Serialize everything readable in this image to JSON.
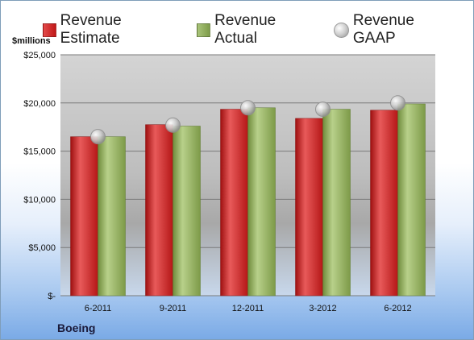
{
  "unit_label": "$millions",
  "company": "Boeing",
  "legend": {
    "estimate": "Revenue Estimate",
    "actual": "Revenue Actual",
    "gaap": "Revenue GAAP"
  },
  "colors": {
    "estimate": "#d42a2a",
    "actual": "#93b15e",
    "gaap": "#c0c0c0",
    "plot_area": "#c8c8c8"
  },
  "chart_data": {
    "type": "bar",
    "categories": [
      "6-2011",
      "9-2011",
      "12-2011",
      "3-2012",
      "6-2012"
    ],
    "series": [
      {
        "name": "Revenue Estimate",
        "values": [
          16500,
          17750,
          19350,
          18400,
          19250
        ]
      },
      {
        "name": "Revenue Actual",
        "values": [
          16500,
          17600,
          19500,
          19350,
          19900
        ]
      },
      {
        "name": "Revenue GAAP",
        "values": [
          16500,
          17700,
          19500,
          19350,
          20000
        ]
      }
    ],
    "ylabel": "$millions",
    "ylim": [
      0,
      25000
    ],
    "y_ticks": [
      0,
      5000,
      10000,
      15000,
      20000,
      25000
    ],
    "y_tick_labels": [
      "$-",
      "$5,000",
      "$10,000",
      "$15,000",
      "$20,000",
      "$25,000"
    ],
    "grid": true,
    "legend_position": "top"
  }
}
